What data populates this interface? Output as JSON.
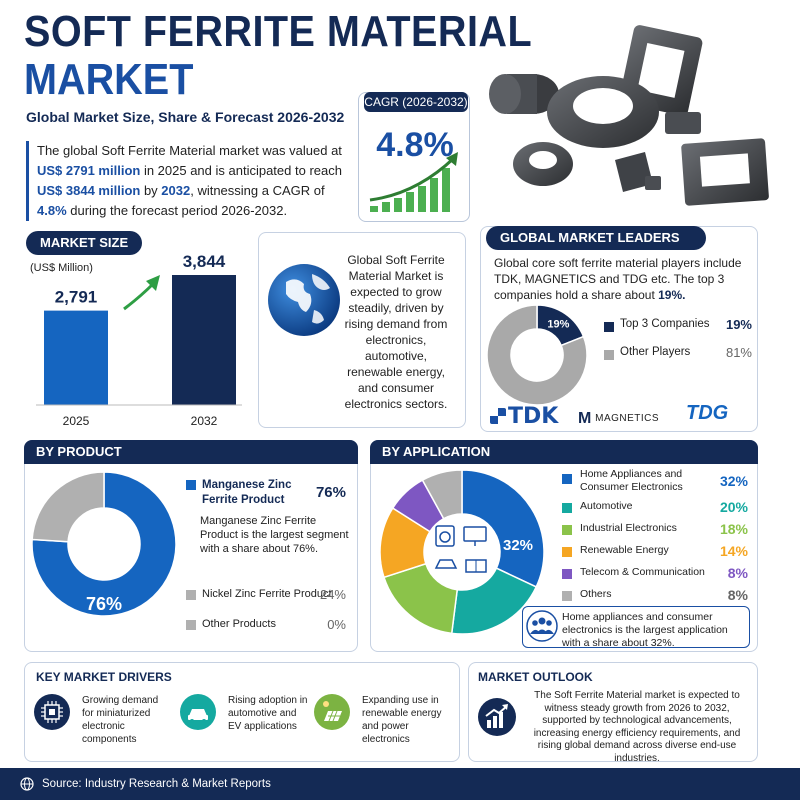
{
  "header": {
    "title_line1": "SOFT FERRITE MATERIAL",
    "title_line2": "MARKET",
    "subtitle": "Global Market Size, Share & Forecast 2026-2032"
  },
  "summary": {
    "p1": "The global Soft Ferrite Material market was valued at ",
    "v1": "US$ 2791 million",
    "p2": " in 2025 and is anticipated to reach ",
    "v2": "US$ 3844 million",
    "p3": " by ",
    "v3": "2032",
    "p4": ", witnessing a CAGR of ",
    "v4": "4.8%",
    "p5": " during the forecast period 2026-2032."
  },
  "cagr": {
    "label": "CAGR (2026-2032)",
    "value": "4.8%"
  },
  "market_size": {
    "label": "MARKET SIZE",
    "unit": "(US$ Million)",
    "value_labels": [
      "2,791",
      "3,844"
    ]
  },
  "globe_text": "Global Soft Ferrite Material Market is expected to grow steadily, driven by rising demand from electronics, automotive, renewable energy, and consumer electronics sectors.",
  "leaders": {
    "label": "GLOBAL MARKET LEADERS",
    "text1": "Global core soft ferrite material players include TDK, MAGNETICS and TDG etc.",
    "text2": "The top 3 companies hold a share about ",
    "text2_value": "19%.",
    "center_label": "19%",
    "logos": [
      "TDK",
      "MAGNETICS",
      "TDG"
    ]
  },
  "product": {
    "label": "BY PRODUCT",
    "center_label": "76%",
    "desc": "Manganese Zinc Ferrite Product is the largest segment with a share about 76%."
  },
  "application": {
    "label": "BY APPLICATION",
    "center_label": "32%",
    "note": "Home appliances and consumer electronics is the largest application with a share about 32%."
  },
  "drivers": {
    "label": "KEY MARKET DRIVERS",
    "items": [
      {
        "text": "Growing demand for miniaturized electronic components",
        "icon": "chip-icon"
      },
      {
        "text": "Rising adoption in automotive and EV applications",
        "icon": "car-icon"
      },
      {
        "text": "Expanding use in renewable energy and power electronics",
        "icon": "solar-panel-icon"
      }
    ]
  },
  "outlook": {
    "label": "MARKET OUTLOOK",
    "text": "The Soft Ferrite Material market is expected to witness steady growth from 2026 to 2032, supported by technological advancements, increasing energy efficiency requirements, and rising global demand across diverse end-use industries."
  },
  "footer": {
    "source": "Source: Industry Research & Market Reports"
  },
  "colors": {
    "navy": "#142a55",
    "blue": "#1a4fa3",
    "mid_blue": "#1565c0",
    "grey": "#9e9e9e",
    "teal": "#15a9a0",
    "green": "#8bc34a",
    "orange": "#f5a623",
    "purple": "#7e57c2"
  },
  "chart_data": [
    {
      "type": "bar",
      "categories": [
        "2025",
        "2032"
      ],
      "values": [
        2791,
        3844
      ],
      "ylabel": "(US$ Million)"
    },
    {
      "type": "pie",
      "labels": [
        "Top 3 Companies",
        "Other Players"
      ],
      "display_values": [
        "19%",
        "81%"
      ],
      "values": [
        19,
        81
      ]
    },
    {
      "type": "pie",
      "labels": [
        "Manganese Zinc Ferrite Product",
        "Nickel Zinc Ferrite Product",
        "Other Products"
      ],
      "display_values": [
        "76%",
        "24%",
        "0%"
      ],
      "values": [
        76,
        24,
        0
      ]
    },
    {
      "type": "pie",
      "labels": [
        "Home Appliances and Consumer Electronics",
        "Automotive",
        "Industrial Electronics",
        "Renewable Energy",
        "Telecom & Communication",
        "Others"
      ],
      "display_values": [
        "32%",
        "20%",
        "18%",
        "14%",
        "8%",
        "8%"
      ],
      "values": [
        32,
        20,
        18,
        14,
        8,
        8
      ]
    }
  ]
}
